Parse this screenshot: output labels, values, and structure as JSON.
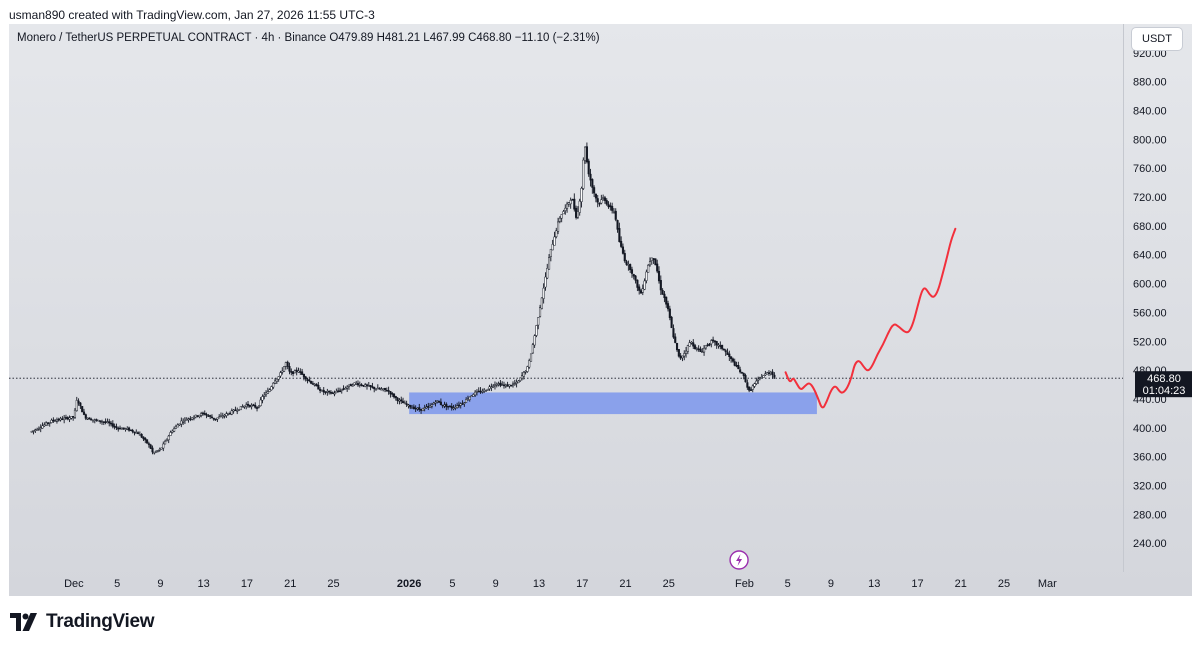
{
  "credit": "usman890 created with TradingView.com, Jan 27, 2026 11:55 UTC-3",
  "legend": "Monero / TetherUS PERPETUAL CONTRACT · 4h · Binance  O479.89  H481.21  L467.99  C468.80  −11.10 (−2.31%)",
  "currency_button": "USDT",
  "brand": "TradingView",
  "icons": {
    "lightning": "lightning-icon",
    "logo": "tradingview-logo-icon"
  },
  "colors": {
    "candle": "#131722",
    "zone": "#7b96ec",
    "projection": "#f2303c",
    "price_label_bg": "#131722",
    "marker": "#9b2fae"
  },
  "chart_data": {
    "type": "candlestick",
    "title": "Monero / TetherUS PERPETUAL CONTRACT · 4h · Binance",
    "ohlc_last": {
      "open": 479.89,
      "high": 481.21,
      "low": 467.99,
      "close": 468.8,
      "change": -11.1,
      "change_pct": -2.31
    },
    "ylim": [
      200,
      960
    ],
    "y_ticks": [
      240,
      280,
      320,
      360,
      400,
      440,
      480,
      520,
      560,
      600,
      640,
      680,
      720,
      760,
      800,
      840,
      880,
      920
    ],
    "y_tick_labels": [
      "240.00",
      "280.00",
      "320.00",
      "360.00",
      "400.00",
      "440.00",
      "480.00",
      "520.00",
      "560.00",
      "600.00",
      "640.00",
      "680.00",
      "720.00",
      "760.00",
      "800.00",
      "840.00",
      "880.00",
      "920.00"
    ],
    "x_day_range": [
      -6,
      97
    ],
    "x_tick_labels": [
      {
        "label": "Dec",
        "day": 0,
        "bold": false
      },
      {
        "label": "5",
        "day": 4,
        "bold": false
      },
      {
        "label": "9",
        "day": 8,
        "bold": false
      },
      {
        "label": "13",
        "day": 12,
        "bold": false
      },
      {
        "label": "17",
        "day": 16,
        "bold": false
      },
      {
        "label": "21",
        "day": 20,
        "bold": false
      },
      {
        "label": "25",
        "day": 24,
        "bold": false
      },
      {
        "label": "2026",
        "day": 31,
        "bold": true
      },
      {
        "label": "5",
        "day": 35,
        "bold": false
      },
      {
        "label": "9",
        "day": 39,
        "bold": false
      },
      {
        "label": "13",
        "day": 43,
        "bold": false
      },
      {
        "label": "17",
        "day": 47,
        "bold": false
      },
      {
        "label": "21",
        "day": 51,
        "bold": false
      },
      {
        "label": "25",
        "day": 55,
        "bold": false
      },
      {
        "label": "Feb",
        "day": 62,
        "bold": false
      },
      {
        "label": "5",
        "day": 66,
        "bold": false
      },
      {
        "label": "9",
        "day": 70,
        "bold": false
      },
      {
        "label": "13",
        "day": 74,
        "bold": false
      },
      {
        "label": "17",
        "day": 78,
        "bold": false
      },
      {
        "label": "21",
        "day": 82,
        "bold": false
      },
      {
        "label": "25",
        "day": 86,
        "bold": false
      },
      {
        "label": "Mar",
        "day": 90,
        "bold": false
      }
    ],
    "price_path": [
      [
        -3.9,
        395
      ],
      [
        -2,
        410
      ],
      [
        0,
        415
      ],
      [
        0.3,
        440
      ],
      [
        1,
        415
      ],
      [
        2,
        410
      ],
      [
        3,
        408
      ],
      [
        4,
        400
      ],
      [
        5,
        398
      ],
      [
        6,
        392
      ],
      [
        7,
        375
      ],
      [
        7.3,
        365
      ],
      [
        8,
        370
      ],
      [
        8.5,
        382
      ],
      [
        9,
        395
      ],
      [
        10,
        410
      ],
      [
        11,
        415
      ],
      [
        12,
        420
      ],
      [
        13,
        412
      ],
      [
        14,
        418
      ],
      [
        15,
        425
      ],
      [
        16,
        432
      ],
      [
        17,
        428
      ],
      [
        17.5,
        445
      ],
      [
        18,
        450
      ],
      [
        18.5,
        465
      ],
      [
        19,
        472
      ],
      [
        19.6,
        490
      ],
      [
        20,
        475
      ],
      [
        20.8,
        480
      ],
      [
        21,
        475
      ],
      [
        22,
        462
      ],
      [
        23,
        450
      ],
      [
        24,
        448
      ],
      [
        25,
        455
      ],
      [
        26,
        462
      ],
      [
        27,
        458
      ],
      [
        28,
        454
      ],
      [
        29,
        452
      ],
      [
        30,
        438
      ],
      [
        31,
        430
      ],
      [
        32,
        425
      ],
      [
        33,
        430
      ],
      [
        33.5,
        438
      ],
      [
        34,
        432
      ],
      [
        35,
        428
      ],
      [
        36,
        435
      ],
      [
        36.5,
        442
      ],
      [
        37,
        448
      ],
      [
        38,
        452
      ],
      [
        39,
        462
      ],
      [
        40,
        458
      ],
      [
        41,
        462
      ],
      [
        42,
        485
      ],
      [
        42.5,
        520
      ],
      [
        43,
        560
      ],
      [
        43.5,
        600
      ],
      [
        44,
        640
      ],
      [
        44.5,
        670
      ],
      [
        45,
        695
      ],
      [
        45.5,
        705
      ],
      [
        46,
        720
      ],
      [
        46.5,
        690
      ],
      [
        47,
        740
      ],
      [
        47.2,
        800
      ],
      [
        47.5,
        760
      ],
      [
        48,
        730
      ],
      [
        48.5,
        710
      ],
      [
        49,
        720
      ],
      [
        49.5,
        705
      ],
      [
        50,
        700
      ],
      [
        50.4,
        660
      ],
      [
        51,
        630
      ],
      [
        51.5,
        620
      ],
      [
        52,
        600
      ],
      [
        52.4,
        585
      ],
      [
        52.7,
        600
      ],
      [
        53,
        622
      ],
      [
        53.5,
        640
      ],
      [
        53.9,
        620
      ],
      [
        54.2,
        595
      ],
      [
        54.6,
        580
      ],
      [
        55,
        560
      ],
      [
        55.3,
        535
      ],
      [
        55.8,
        505
      ],
      [
        56,
        495
      ],
      [
        56.5,
        505
      ],
      [
        57,
        520
      ],
      [
        57.5,
        510
      ],
      [
        58,
        505
      ],
      [
        58.5,
        515
      ],
      [
        59,
        520
      ],
      [
        59.5,
        515
      ],
      [
        60,
        510
      ],
      [
        60.5,
        500
      ],
      [
        61,
        490
      ],
      [
        61.5,
        480
      ],
      [
        62,
        470
      ],
      [
        62.4,
        450
      ],
      [
        63,
        462
      ],
      [
        63.5,
        470
      ],
      [
        64,
        475
      ],
      [
        64.5,
        478
      ],
      [
        64.8,
        469
      ]
    ],
    "support_zone": {
      "day_start": 31,
      "day_end": 68.7,
      "price_low": 419,
      "price_high": 449
    },
    "projection_path": [
      [
        65.8,
        477
      ],
      [
        66.2,
        462
      ],
      [
        66.5,
        470
      ],
      [
        66.8,
        462
      ],
      [
        67.2,
        452
      ],
      [
        67.6,
        458
      ],
      [
        68,
        463
      ],
      [
        68.4,
        455
      ],
      [
        68.8,
        441
      ],
      [
        69.2,
        425
      ],
      [
        69.6,
        436
      ],
      [
        70,
        452
      ],
      [
        70.4,
        459
      ],
      [
        70.8,
        450
      ],
      [
        71.1,
        448
      ],
      [
        71.5,
        455
      ],
      [
        71.9,
        470
      ],
      [
        72.2,
        489
      ],
      [
        72.6,
        494
      ],
      [
        73,
        485
      ],
      [
        73.4,
        478
      ],
      [
        73.8,
        485
      ],
      [
        74.3,
        502
      ],
      [
        74.8,
        515
      ],
      [
        75.3,
        532
      ],
      [
        75.8,
        545
      ],
      [
        76.3,
        540
      ],
      [
        76.8,
        533
      ],
      [
        77.2,
        532
      ],
      [
        77.6,
        545
      ],
      [
        78,
        568
      ],
      [
        78.4,
        590
      ],
      [
        78.7,
        595
      ],
      [
        79.1,
        585
      ],
      [
        79.5,
        580
      ],
      [
        79.9,
        590
      ],
      [
        80.3,
        612
      ],
      [
        80.7,
        635
      ],
      [
        81.1,
        660
      ],
      [
        81.5,
        676
      ]
    ],
    "last_price": {
      "label": "468.80",
      "countdown": "01:04:23",
      "value": 468.8
    },
    "marker_day": 61.5
  }
}
